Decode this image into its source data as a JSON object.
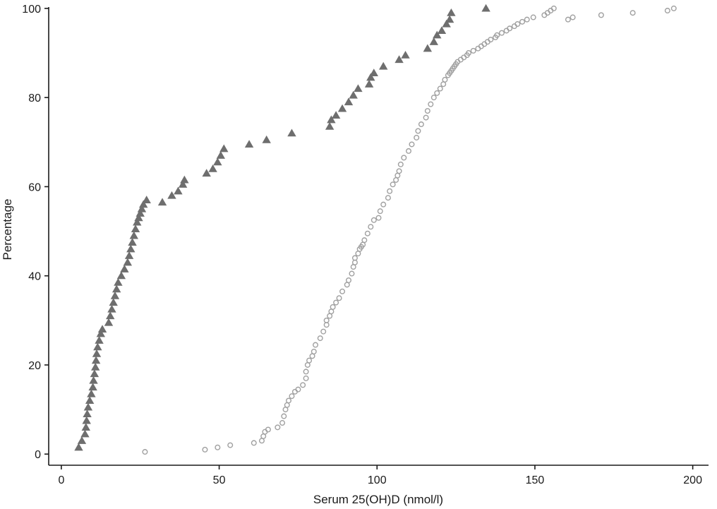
{
  "chart_data": {
    "type": "scatter",
    "title": "",
    "xlabel": "Serum 25(OH)D (nmol/l)",
    "ylabel": "Percentage",
    "xlim": [
      -4,
      205
    ],
    "ylim": [
      -2.5,
      100.3
    ],
    "xticks": [
      0,
      50,
      100,
      150,
      200
    ],
    "xtick_labels": [
      "0",
      "50",
      "100",
      "150",
      "200"
    ],
    "yticks": [
      0,
      20,
      40,
      60,
      80,
      100
    ],
    "ytick_labels": [
      "0",
      "20",
      "40",
      "60",
      "80",
      "100"
    ],
    "grid": false,
    "series": [
      {
        "marker": "triangle",
        "color": "#6e6e6e",
        "x": [
          5.5,
          6.5,
          7.5,
          7.8,
          8.0,
          8.2,
          8.5,
          9.0,
          9.5,
          10.0,
          10.2,
          10.5,
          10.8,
          11.0,
          11.2,
          11.5,
          12.0,
          12.5,
          13.0,
          15.0,
          15.5,
          16.0,
          16.5,
          17.0,
          17.5,
          18.0,
          19.0,
          20.0,
          21.0,
          21.5,
          22.0,
          22.5,
          23.0,
          23.5,
          24.0,
          24.5,
          25.0,
          25.5,
          26.0,
          27.0,
          32.0,
          35.0,
          37.0,
          38.5,
          39.0,
          46.0,
          48.0,
          49.5,
          50.5,
          51.5,
          59.5,
          65.0,
          73.0,
          85.0,
          85.5,
          87.0,
          89.0,
          91.0,
          92.5,
          94.0,
          97.5,
          98.0,
          99.0,
          102.0,
          107.0,
          109.0,
          116.0,
          118.0,
          119.0,
          120.5,
          122.0,
          123.0,
          123.5,
          134.5
        ],
        "y": [
          1.5,
          3.0,
          4.5,
          6.0,
          7.5,
          9.0,
          10.5,
          12.0,
          13.5,
          15.0,
          16.5,
          18.0,
          19.5,
          21.0,
          22.5,
          24.0,
          25.5,
          27.0,
          28.0,
          29.5,
          31.0,
          32.5,
          34.0,
          35.5,
          37.0,
          38.5,
          40.0,
          41.5,
          43.0,
          44.5,
          46.0,
          47.5,
          49.0,
          50.5,
          52.0,
          53.0,
          54.0,
          55.0,
          56.0,
          57.0,
          56.5,
          58.0,
          59.0,
          60.5,
          61.5,
          63.0,
          64.0,
          65.5,
          67.0,
          68.5,
          69.5,
          70.5,
          72.0,
          73.5,
          75.0,
          76.0,
          77.5,
          79.0,
          80.5,
          82.0,
          83.0,
          84.5,
          85.5,
          87.0,
          88.5,
          89.5,
          91.0,
          92.5,
          94.0,
          95.0,
          96.5,
          97.5,
          99.0,
          100.0
        ]
      },
      {
        "marker": "circle",
        "color": "#a0a0a0",
        "x": [
          26.5,
          45.5,
          49.5,
          53.5,
          61.0,
          63.5,
          64.0,
          64.5,
          65.5,
          68.5,
          70.0,
          70.5,
          71.0,
          71.5,
          72.0,
          73.0,
          74.0,
          75.0,
          76.5,
          77.5,
          77.5,
          78.0,
          78.5,
          79.5,
          80.0,
          80.5,
          82.0,
          83.0,
          84.0,
          84.0,
          85.0,
          85.5,
          86.0,
          87.0,
          88.0,
          89.0,
          90.5,
          91.0,
          92.0,
          92.5,
          93.0,
          93.0,
          94.0,
          94.5,
          95.0,
          95.5,
          96.0,
          97.0,
          98.0,
          99.0,
          100.5,
          101.0,
          102.0,
          103.5,
          104.0,
          105.0,
          106.0,
          106.5,
          107.0,
          107.5,
          108.5,
          110.0,
          111.0,
          112.5,
          113.0,
          114.0,
          115.5,
          116.0,
          117.0,
          118.0,
          119.0,
          120.0,
          121.0,
          121.5,
          122.5,
          123.0,
          123.5,
          124.0,
          124.5,
          125.0,
          125.5,
          126.5,
          127.5,
          128.5,
          129.0,
          130.5,
          132.0,
          133.0,
          134.0,
          135.0,
          136.0,
          137.5,
          138.0,
          139.5,
          141.0,
          142.0,
          143.5,
          144.5,
          146.0,
          147.5,
          149.5,
          153.0,
          154.0,
          155.0,
          156.0,
          160.5,
          162.0,
          171.0,
          181.0,
          192.0,
          194.0
        ],
        "y": [
          0.5,
          1.0,
          1.5,
          2.0,
          2.5,
          3.0,
          4.0,
          5.0,
          5.5,
          6.0,
          7.0,
          8.5,
          10.0,
          11.0,
          12.0,
          13.0,
          14.0,
          14.5,
          15.5,
          17.0,
          18.5,
          20.0,
          21.0,
          22.0,
          23.0,
          24.5,
          26.0,
          27.5,
          29.0,
          30.0,
          31.0,
          32.0,
          33.0,
          34.0,
          35.0,
          36.5,
          38.0,
          39.0,
          40.5,
          42.0,
          43.0,
          44.0,
          45.0,
          46.0,
          46.5,
          47.0,
          48.0,
          49.5,
          51.0,
          52.5,
          53.0,
          54.5,
          56.0,
          57.5,
          59.0,
          60.5,
          61.5,
          62.5,
          63.5,
          65.0,
          66.5,
          68.0,
          69.5,
          71.0,
          72.5,
          74.0,
          75.5,
          77.0,
          78.5,
          80.0,
          81.0,
          82.0,
          83.0,
          84.0,
          85.0,
          85.5,
          86.0,
          86.5,
          87.0,
          87.5,
          88.0,
          88.5,
          89.0,
          89.5,
          90.0,
          90.5,
          91.0,
          91.5,
          92.0,
          92.5,
          93.0,
          93.5,
          94.0,
          94.5,
          95.0,
          95.5,
          96.0,
          96.5,
          97.0,
          97.5,
          98.0,
          98.5,
          99.0,
          99.5,
          100.0,
          97.5,
          98.0,
          98.5,
          99.0,
          99.5,
          100.0
        ]
      }
    ]
  }
}
